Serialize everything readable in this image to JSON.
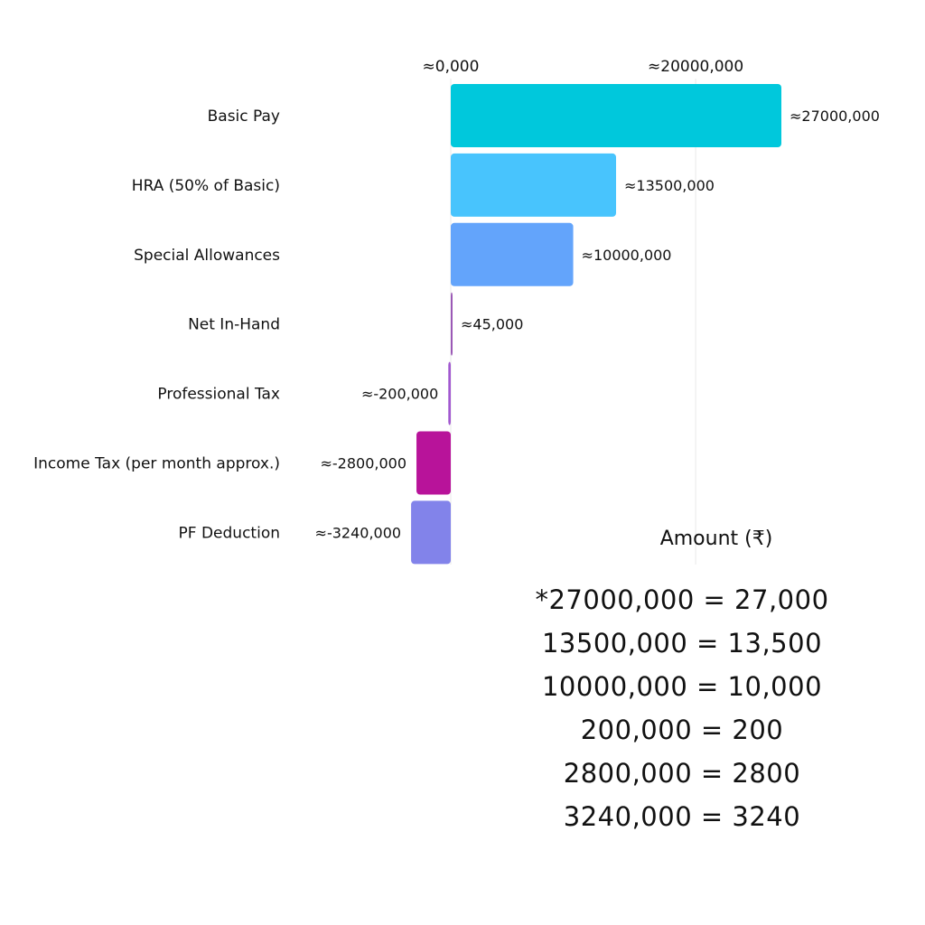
{
  "chart_data": {
    "type": "bar",
    "orientation": "horizontal",
    "categories": [
      "Basic Pay",
      "HRA (50% of Basic)",
      "Special Allowances",
      "Net In-Hand",
      "Professional Tax",
      "Income Tax (per month approx.)",
      "PF Deduction"
    ],
    "values": [
      27000000,
      13500000,
      10000000,
      45000,
      -200000,
      -2800000,
      -3240000
    ],
    "data_labels": [
      "≈27000,000",
      "≈13500,000",
      "≈10000,000",
      "≈45,000",
      "≈-200,000",
      "≈-2800,000",
      "≈-3240,000"
    ],
    "bar_colors": [
      "#00c8dc",
      "#48c4fd",
      "#63a4fb",
      "#9b59b6",
      "#a259d0",
      "#b8139a",
      "#8283ea"
    ],
    "x_ticks": [
      {
        "value": 0,
        "label": "≈0,000"
      },
      {
        "value": 20000000,
        "label": "≈20000,000"
      }
    ],
    "xlabel": "Amount (₹)",
    "xlim": [
      -3240000,
      27000000
    ],
    "grid": true,
    "legend": "none"
  },
  "notes": [
    "*27000,000 = 27,000",
    "13500,000 = 13,500",
    "10000,000 = 10,000",
    "200,000 = 200",
    "2800,000 = 2800",
    "3240,000 = 3240"
  ]
}
